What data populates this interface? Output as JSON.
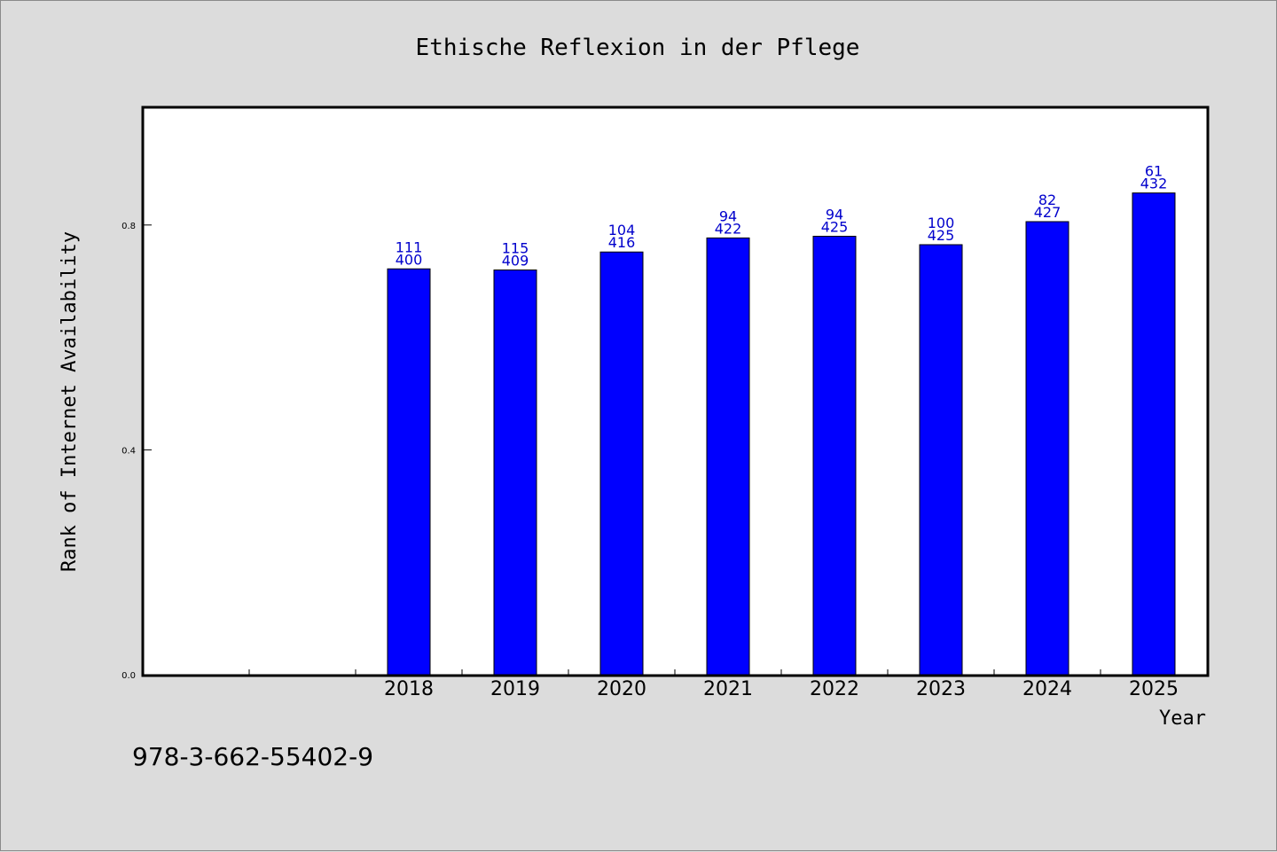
{
  "colors": {
    "bar": "#0000ff",
    "data_label": "#0000cc",
    "background": "#dcdcdc",
    "plot_background": "#ffffff"
  },
  "footer_code": "978-3-662-55402-9",
  "chart_data": {
    "type": "bar",
    "title": "Ethische Reflexion in der Pflege",
    "xlabel": "Year",
    "ylabel": "Rank of Internet Availability",
    "categories": [
      "",
      "",
      "2018",
      "2019",
      "2020",
      "2021",
      "2022",
      "2023",
      "2024",
      "2025"
    ],
    "values": [
      null,
      null,
      0.722,
      0.72,
      0.752,
      0.777,
      0.78,
      0.765,
      0.806,
      0.857
    ],
    "data_labels_top": [
      "",
      "",
      "111",
      "115",
      "104",
      "94",
      "94",
      "100",
      "82",
      "61"
    ],
    "data_labels_bottom": [
      "",
      "",
      "400",
      "409",
      "416",
      "422",
      "425",
      "425",
      "427",
      "432"
    ],
    "yticks": [
      0.0,
      0.4,
      0.8
    ],
    "ytick_labels": [
      "0.0",
      "0.4",
      "0.8"
    ],
    "ylim": [
      0,
      1.0
    ],
    "grid": false,
    "legend": "none"
  }
}
